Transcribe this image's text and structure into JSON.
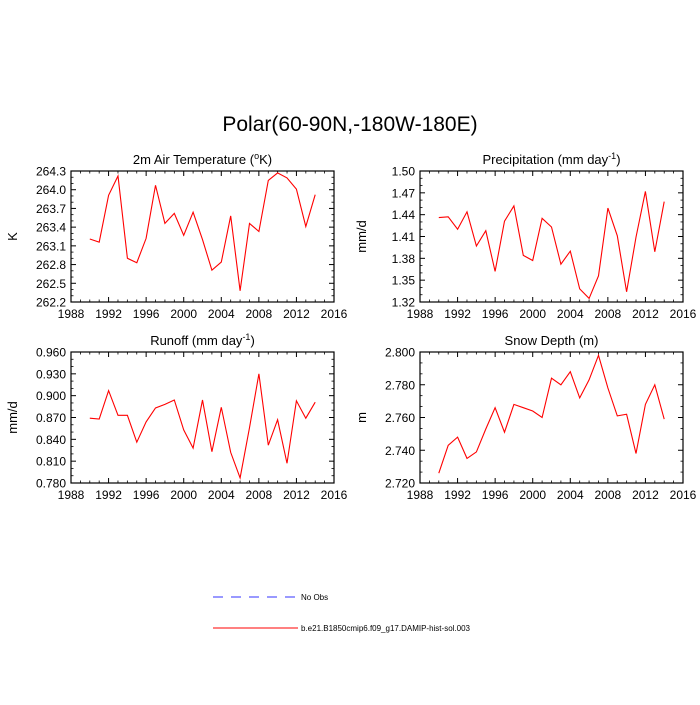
{
  "figure": {
    "title": "Polar(60-90N,-180W-180E)",
    "legend": [
      {
        "label": "No Obs",
        "color": "#3333ff",
        "style": "dashed"
      },
      {
        "label": "b.e21.B1850cmip6.f09_g17.DAMIP-hist-sol.003",
        "color": "#ff0000",
        "style": "solid"
      }
    ]
  },
  "chart_data": [
    {
      "type": "line",
      "title": "2m Air Temperature (°K)",
      "title_main": "2m Air Temperature (",
      "title_sup": "o",
      "title_end": "K)",
      "ylabel": "K",
      "xlim": [
        1988,
        2016
      ],
      "xticks": [
        1988,
        1992,
        1996,
        2000,
        2004,
        2008,
        2012,
        2016
      ],
      "ylim": [
        262.2,
        264.3
      ],
      "yticks": [
        "262.2",
        "262.5",
        "262.8",
        "263.1",
        "263.4",
        "263.7",
        "264.0",
        "264.3"
      ],
      "series": [
        {
          "name": "b.e21.B1850cmip6.f09_g17.DAMIP-hist-sol.003",
          "color": "#ff0000",
          "x": [
            1990,
            1991,
            1992,
            1993,
            1994,
            1995,
            1996,
            1997,
            1998,
            1999,
            2000,
            2001,
            2002,
            2003,
            2004,
            2005,
            2006,
            2007,
            2008,
            2009,
            2010,
            2011,
            2012,
            2013,
            2014
          ],
          "y": [
            263.21,
            263.16,
            263.91,
            264.22,
            262.9,
            262.83,
            263.22,
            264.07,
            263.46,
            263.62,
            263.27,
            263.64,
            263.2,
            262.71,
            262.84,
            263.58,
            262.38,
            263.46,
            263.33,
            264.15,
            264.27,
            264.19,
            264.01,
            263.41,
            263.92
          ]
        }
      ]
    },
    {
      "type": "line",
      "title": "Precipitation (mm day-1)",
      "title_main": "Precipitation (mm day",
      "title_sup": "-1",
      "title_end": ")",
      "ylabel": "mm/d",
      "xlim": [
        1988,
        2016
      ],
      "xticks": [
        1988,
        1992,
        1996,
        2000,
        2004,
        2008,
        2012,
        2016
      ],
      "ylim": [
        1.32,
        1.5
      ],
      "yticks": [
        "1.32",
        "1.35",
        "1.38",
        "1.41",
        "1.44",
        "1.47",
        "1.50"
      ],
      "series": [
        {
          "name": "b.e21.B1850cmip6.f09_g17.DAMIP-hist-sol.003",
          "color": "#ff0000",
          "x": [
            1990,
            1991,
            1992,
            1993,
            1994,
            1995,
            1996,
            1997,
            1998,
            1999,
            2000,
            2001,
            2002,
            2003,
            2004,
            2005,
            2006,
            2007,
            2008,
            2009,
            2010,
            2011,
            2012,
            2013,
            2014
          ],
          "y": [
            1.436,
            1.437,
            1.42,
            1.444,
            1.397,
            1.418,
            1.362,
            1.431,
            1.452,
            1.384,
            1.377,
            1.435,
            1.423,
            1.372,
            1.39,
            1.338,
            1.325,
            1.356,
            1.449,
            1.411,
            1.334,
            1.409,
            1.472,
            1.389,
            1.458
          ]
        }
      ]
    },
    {
      "type": "line",
      "title": "Runoff (mm day-1)",
      "title_main": "Runoff (mm day",
      "title_sup": "-1",
      "title_end": ")",
      "ylabel": "mm/d",
      "xlim": [
        1988,
        2016
      ],
      "xticks": [
        1988,
        1992,
        1996,
        2000,
        2004,
        2008,
        2012,
        2016
      ],
      "ylim": [
        0.78,
        0.96
      ],
      "yticks": [
        "0.780",
        "0.810",
        "0.840",
        "0.870",
        "0.900",
        "0.930",
        "0.960"
      ],
      "series": [
        {
          "name": "b.e21.B1850cmip6.f09_g17.DAMIP-hist-sol.003",
          "color": "#ff0000",
          "x": [
            1990,
            1991,
            1992,
            1993,
            1994,
            1995,
            1996,
            1997,
            1998,
            1999,
            2000,
            2001,
            2002,
            2003,
            2004,
            2005,
            2006,
            2007,
            2008,
            2009,
            2010,
            2011,
            2012,
            2013,
            2014
          ],
          "y": [
            0.869,
            0.868,
            0.907,
            0.873,
            0.873,
            0.836,
            0.864,
            0.883,
            0.888,
            0.894,
            0.853,
            0.828,
            0.894,
            0.823,
            0.884,
            0.822,
            0.787,
            0.856,
            0.93,
            0.832,
            0.867,
            0.807,
            0.893,
            0.869,
            0.891
          ]
        }
      ]
    },
    {
      "type": "line",
      "title": "Snow Depth (m)",
      "title_main": "Snow Depth (m)",
      "title_sup": "",
      "title_end": "",
      "ylabel": "m",
      "xlim": [
        1988,
        2016
      ],
      "xticks": [
        1988,
        1992,
        1996,
        2000,
        2004,
        2008,
        2012,
        2016
      ],
      "ylim": [
        2.72,
        2.8
      ],
      "yticks": [
        "2.720",
        "2.740",
        "2.760",
        "2.780",
        "2.800"
      ],
      "series": [
        {
          "name": "b.e21.B1850cmip6.f09_g17.DAMIP-hist-sol.003",
          "color": "#ff0000",
          "x": [
            1990,
            1991,
            1992,
            1993,
            1994,
            1995,
            1996,
            1997,
            1998,
            1999,
            2000,
            2001,
            2002,
            2003,
            2004,
            2005,
            2006,
            2007,
            2008,
            2009,
            2010,
            2011,
            2012,
            2013,
            2014
          ],
          "y": [
            2.726,
            2.743,
            2.748,
            2.735,
            2.739,
            2.753,
            2.766,
            2.751,
            2.768,
            2.766,
            2.764,
            2.76,
            2.784,
            2.78,
            2.788,
            2.772,
            2.783,
            2.798,
            2.778,
            2.761,
            2.762,
            2.738,
            2.768,
            2.78,
            2.759
          ]
        }
      ]
    }
  ]
}
